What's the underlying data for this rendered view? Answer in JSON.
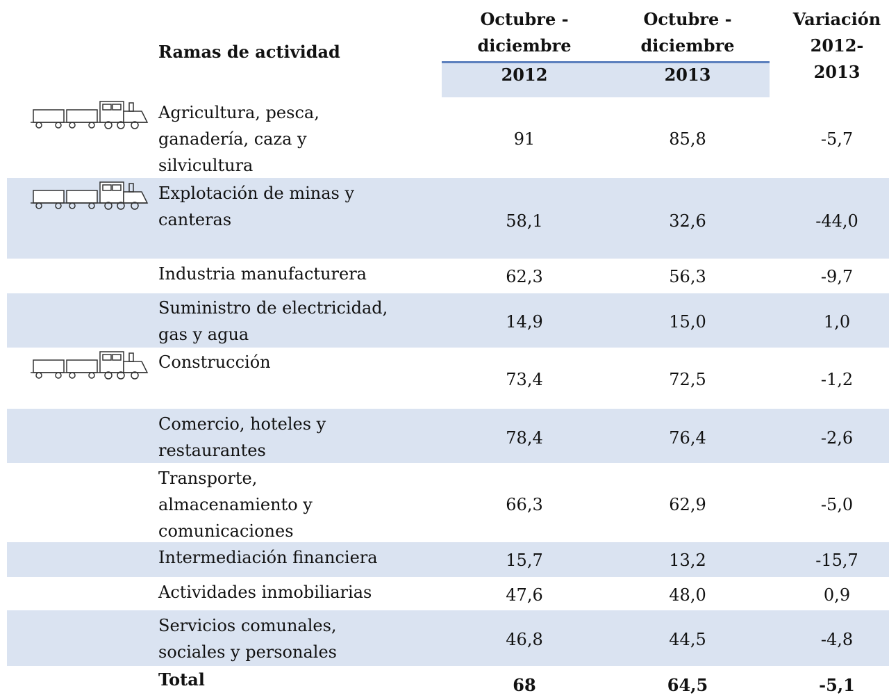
{
  "header": {
    "rama": "Ramas de actividad",
    "col1": [
      "Octubre -",
      "diciembre"
    ],
    "col1_year": "2012",
    "col2": [
      "Octubre -",
      "diciembre"
    ],
    "col2_year": "2013",
    "col3": [
      "Variación",
      "2012-",
      "2013"
    ]
  },
  "rows": [
    {
      "label": [
        "Agricultura, pesca,",
        "ganadería, caza y",
        "silvicultura"
      ],
      "v2012": "91",
      "v2013": "85,8",
      "var": "-5,7"
    },
    {
      "label": [
        "Explotación de minas y",
        "canteras"
      ],
      "v2012": "58,1",
      "v2013": "32,6",
      "var": "-44,0"
    },
    {
      "label": [
        "Industria manufacturera"
      ],
      "v2012": "62,3",
      "v2013": "56,3",
      "var": "-9,7"
    },
    {
      "label": [
        "Suministro de electricidad,",
        "gas y agua"
      ],
      "v2012": "14,9",
      "v2013": "15,0",
      "var": "1,0"
    },
    {
      "label": [
        "Construcción"
      ],
      "v2012": "73,4",
      "v2013": "72,5",
      "var": "-1,2"
    },
    {
      "label": [
        "Comercio, hoteles y",
        "restaurantes"
      ],
      "v2012": "78,4",
      "v2013": "76,4",
      "var": "-2,6"
    },
    {
      "label": [
        "Transporte,",
        "almacenamiento y",
        "comunicaciones"
      ],
      "v2012": "66,3",
      "v2013": "62,9",
      "var": "-5,0"
    },
    {
      "label": [
        "Intermediación financiera"
      ],
      "v2012": "15,7",
      "v2013": "13,2",
      "var": "-15,7"
    },
    {
      "label": [
        "Actividades inmobiliarias"
      ],
      "v2012": "47,6",
      "v2013": "48,0",
      "var": "0,9"
    },
    {
      "label": [
        "Servicios comunales,",
        "sociales y personales"
      ],
      "v2012": "46,8",
      "v2013": "44,5",
      "var": "-4,8"
    }
  ],
  "total": {
    "label": "Total",
    "v2012": "68",
    "v2013": "64,5",
    "var": "-5,1"
  }
}
